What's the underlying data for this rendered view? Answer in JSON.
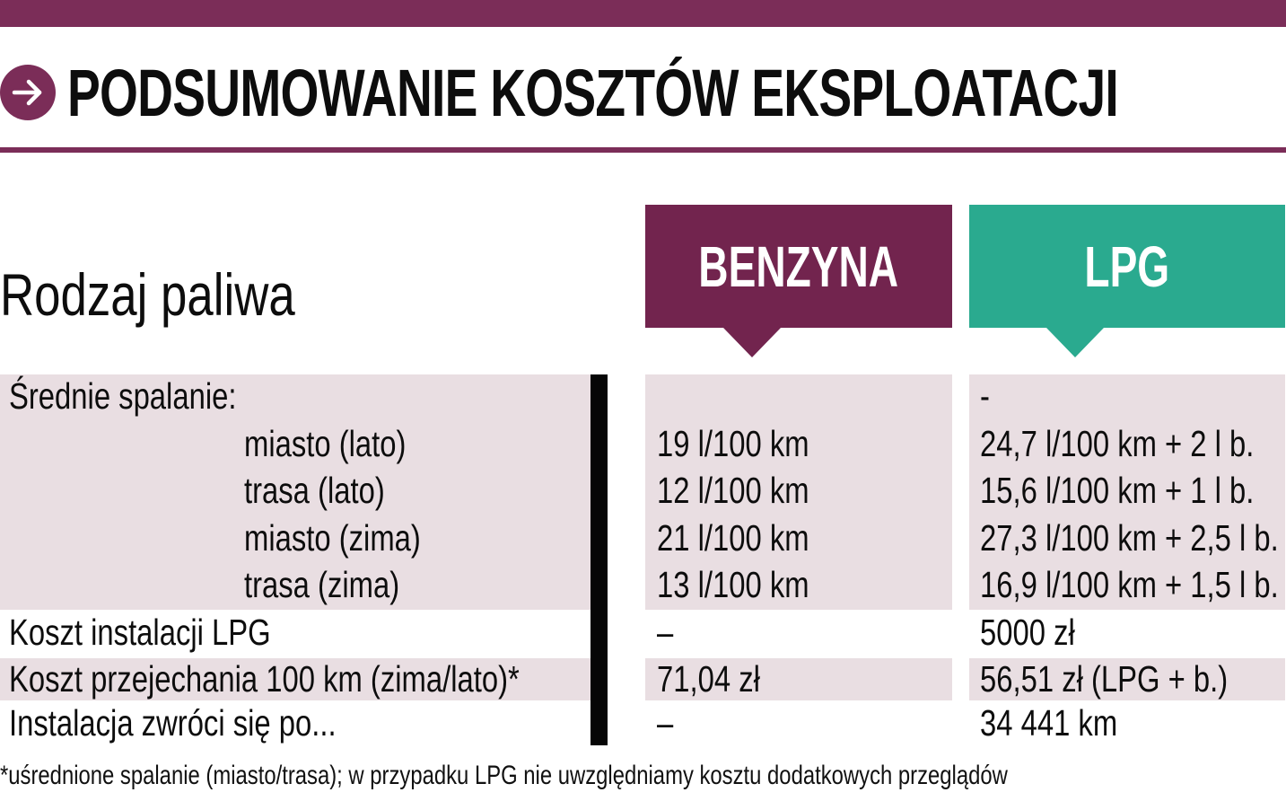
{
  "colors": {
    "accent_purple": "#7b2d58",
    "benzyna_header": "#72244e",
    "lpg_header": "#2aaa8f",
    "row_band": "#e9dee2"
  },
  "header": {
    "icon": "arrow-right-icon",
    "title": "PODSUMOWANIE KOSZTÓW EKSPLOATACJI"
  },
  "table": {
    "row_header_label": "Rodzaj paliwa",
    "columns": [
      "BENZYNA",
      "LPG"
    ],
    "rows": [
      {
        "label": "Średnie spalanie:",
        "benzyna": "",
        "lpg": "-"
      },
      {
        "label": "miasto (lato)",
        "benzyna": "19 l/100 km",
        "lpg": "24,7 l/100 km + 2 l b."
      },
      {
        "label": "trasa (lato)",
        "benzyna": "12 l/100 km",
        "lpg": "15,6 l/100 km + 1 l b."
      },
      {
        "label": "miasto (zima)",
        "benzyna": "21 l/100 km",
        "lpg": "27,3 l/100 km + 2,5 l b."
      },
      {
        "label": "trasa (zima)",
        "benzyna": "13 l/100 km",
        "lpg": "16,9 l/100 km + 1,5 l b."
      },
      {
        "label": "Koszt instalacji LPG",
        "benzyna": "–",
        "lpg": "5000 zł"
      },
      {
        "label": "Koszt przejechania 100 km (zima/lato)*",
        "benzyna": "71,04 zł",
        "lpg": "56,51 zł (LPG + b.)"
      },
      {
        "label": "Instalacja zwróci się po...",
        "benzyna": "–",
        "lpg": "34 441 km"
      }
    ]
  },
  "footnote": "*uśrednione spalanie (miasto/trasa); w przypadku LPG nie uwzględniamy kosztu dodatkowych przeglądów"
}
